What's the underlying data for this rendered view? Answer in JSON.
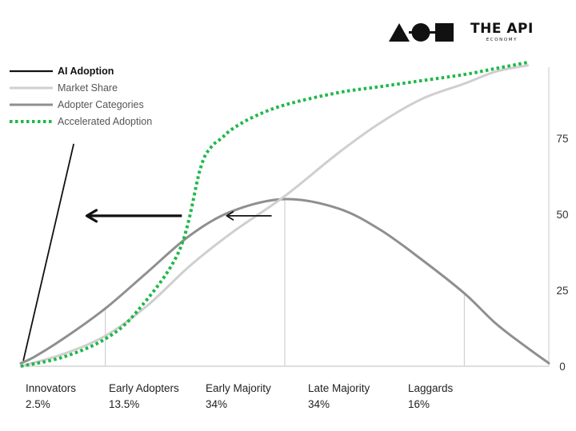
{
  "brand": {
    "title": "THE API",
    "subtitle": "ECONOMY",
    "mark_icon": "triangle-circle-square-logo-icon"
  },
  "chart_data": {
    "type": "line",
    "title": "",
    "xlabel": "",
    "ylabel": "",
    "ylim": [
      0,
      100
    ],
    "yticks": [
      0,
      25,
      50,
      75
    ],
    "y_axis_position": "right",
    "grid": false,
    "legend_placement": "top-left",
    "legend": [
      {
        "name": "AI Adoption",
        "color": "#111111",
        "style": "solid",
        "bold": true
      },
      {
        "name": "Market Share",
        "color": "#cfcfcf",
        "style": "solid",
        "bold": false
      },
      {
        "name": "Adopter Categories",
        "color": "#8f8f8f",
        "style": "solid",
        "bold": false
      },
      {
        "name": "Accelerated Adoption",
        "color": "#1fb84a",
        "style": "dotted",
        "bold": false
      }
    ],
    "categories": [
      {
        "name": "Innovators",
        "share": "2.5%"
      },
      {
        "name": "Early Adopters",
        "share": "13.5%"
      },
      {
        "name": "Early Majority",
        "share": "34%"
      },
      {
        "name": "Late Majority",
        "share": "34%"
      },
      {
        "name": "Laggards",
        "share": "16%"
      }
    ],
    "category_boundaries_x": [
      0,
      2.5,
      16,
      50,
      84,
      100
    ],
    "x_domain": [
      0,
      100
    ],
    "series": [
      {
        "name": "Adopter Categories",
        "x": [
          0,
          2.5,
          8,
          16,
          24,
          32,
          40,
          50,
          60,
          68,
          76,
          84,
          90,
          96,
          100
        ],
        "y": [
          1,
          3,
          9,
          19,
          31,
          43,
          51,
          55,
          52,
          45,
          35,
          24,
          14,
          6,
          1
        ]
      },
      {
        "name": "Market Share",
        "x": [
          0,
          8,
          16,
          24,
          32,
          40,
          50,
          60,
          68,
          76,
          84,
          90,
          96
        ],
        "y": [
          0,
          4,
          10,
          20,
          33,
          44,
          56,
          70,
          80,
          88,
          93,
          97,
          99
        ]
      },
      {
        "name": "Accelerated Adoption",
        "x": [
          0,
          8,
          16,
          22,
          30,
          34,
          36,
          38,
          40,
          44,
          50,
          60,
          68,
          76,
          84,
          90,
          96
        ],
        "y": [
          0,
          3,
          9,
          18,
          38,
          65,
          72,
          75,
          78,
          82,
          86,
          90,
          92,
          94,
          96,
          98,
          100
        ]
      },
      {
        "name": "AI Adoption",
        "x": [
          0.5,
          10
        ],
        "y": [
          2,
          73
        ]
      }
    ],
    "arrows": [
      {
        "from": [
          30.5,
          49.5
        ],
        "to": [
          12.5,
          49.5
        ],
        "weight": "heavy"
      },
      {
        "from": [
          47.5,
          49.5
        ],
        "to": [
          39,
          49.5
        ],
        "weight": "light"
      }
    ]
  }
}
